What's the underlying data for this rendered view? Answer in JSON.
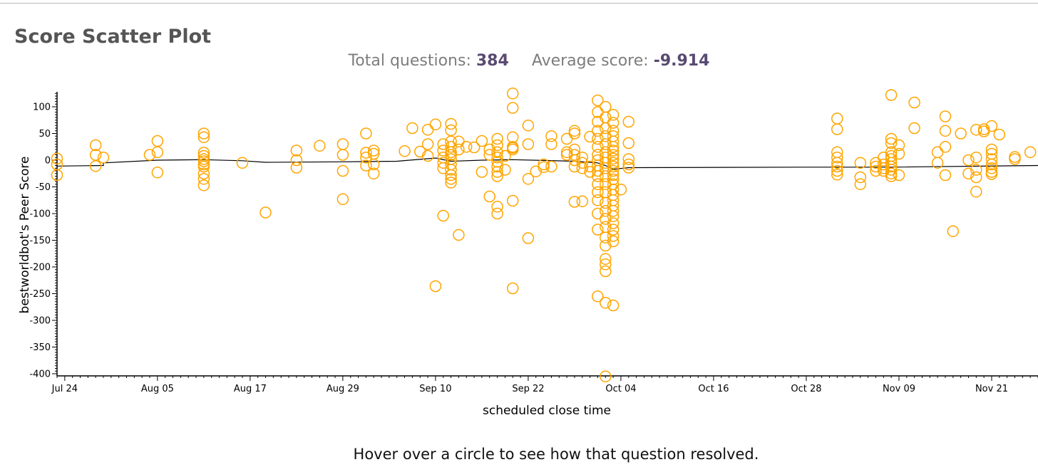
{
  "page": {
    "title": "Score Scatter Plot",
    "stats": {
      "total_label": "Total questions:",
      "total_value": "384",
      "average_label": "Average score:",
      "average_value": "-9.914"
    },
    "hover_hint": "Hover over a circle to see how that question resolved."
  },
  "colors": {
    "point": "#ffa500",
    "line": "#000000",
    "stat_value": "#594a72",
    "title": "#555555"
  },
  "chart_data": {
    "type": "scatter",
    "xlabel": "scheduled close time",
    "ylabel": "bestworldbot's Peer Score",
    "xlim": [
      "2024-07-23",
      "2024-11-27"
    ],
    "ylim": [
      -400,
      125
    ],
    "x_ticks": [
      {
        "date": "2024-07-24",
        "label": "Jul 24"
      },
      {
        "date": "2024-08-05",
        "label": "Aug 05"
      },
      {
        "date": "2024-08-17",
        "label": "Aug 17"
      },
      {
        "date": "2024-08-29",
        "label": "Aug 29"
      },
      {
        "date": "2024-09-10",
        "label": "Sep 10"
      },
      {
        "date": "2024-09-22",
        "label": "Sep 22"
      },
      {
        "date": "2024-10-04",
        "label": "Oct 04"
      },
      {
        "date": "2024-10-16",
        "label": "Oct 16"
      },
      {
        "date": "2024-10-28",
        "label": "Oct 28"
      },
      {
        "date": "2024-11-09",
        "label": "Nov 09"
      },
      {
        "date": "2024-11-21",
        "label": "Nov 21"
      }
    ],
    "y_ticks": [
      100,
      50,
      0,
      -50,
      -100,
      -150,
      -200,
      -250,
      -300,
      -350,
      -400
    ],
    "grid": false,
    "legend": "none",
    "marker": "hollow-circle",
    "points": [
      [
        "2024-07-23",
        3
      ],
      [
        "2024-07-23",
        -8
      ],
      [
        "2024-07-23",
        -28
      ],
      [
        "2024-07-28",
        28
      ],
      [
        "2024-07-28",
        10
      ],
      [
        "2024-07-28",
        -11
      ],
      [
        "2024-07-29",
        5
      ],
      [
        "2024-08-04",
        10
      ],
      [
        "2024-08-05",
        36
      ],
      [
        "2024-08-05",
        15
      ],
      [
        "2024-08-05",
        -23
      ],
      [
        "2024-08-11",
        50
      ],
      [
        "2024-08-11",
        43
      ],
      [
        "2024-08-11",
        14
      ],
      [
        "2024-08-11",
        8
      ],
      [
        "2024-08-11",
        2
      ],
      [
        "2024-08-11",
        -2
      ],
      [
        "2024-08-11",
        -8
      ],
      [
        "2024-08-11",
        -12
      ],
      [
        "2024-08-11",
        -25
      ],
      [
        "2024-08-11",
        -35
      ],
      [
        "2024-08-11",
        -47
      ],
      [
        "2024-08-16",
        -5
      ],
      [
        "2024-08-19",
        -98
      ],
      [
        "2024-08-23",
        18
      ],
      [
        "2024-08-23",
        0
      ],
      [
        "2024-08-23",
        -14
      ],
      [
        "2024-08-26",
        27
      ],
      [
        "2024-08-29",
        30
      ],
      [
        "2024-08-29",
        10
      ],
      [
        "2024-08-29",
        -20
      ],
      [
        "2024-08-29",
        -73
      ],
      [
        "2024-09-01",
        50
      ],
      [
        "2024-09-01",
        14
      ],
      [
        "2024-09-01",
        5
      ],
      [
        "2024-09-01",
        -10
      ],
      [
        "2024-09-02",
        18
      ],
      [
        "2024-09-02",
        12
      ],
      [
        "2024-09-02",
        -8
      ],
      [
        "2024-09-02",
        -25
      ],
      [
        "2024-09-06",
        17
      ],
      [
        "2024-09-07",
        60
      ],
      [
        "2024-09-08",
        16
      ],
      [
        "2024-09-09",
        57
      ],
      [
        "2024-09-09",
        30
      ],
      [
        "2024-09-09",
        8
      ],
      [
        "2024-09-10",
        67
      ],
      [
        "2024-09-10",
        -236
      ],
      [
        "2024-09-11",
        30
      ],
      [
        "2024-09-11",
        18
      ],
      [
        "2024-09-11",
        5
      ],
      [
        "2024-09-11",
        -5
      ],
      [
        "2024-09-11",
        -15
      ],
      [
        "2024-09-11",
        -104
      ],
      [
        "2024-09-12",
        68
      ],
      [
        "2024-09-12",
        56
      ],
      [
        "2024-09-12",
        35
      ],
      [
        "2024-09-12",
        25
      ],
      [
        "2024-09-12",
        15
      ],
      [
        "2024-09-12",
        10
      ],
      [
        "2024-09-12",
        2
      ],
      [
        "2024-09-12",
        -8
      ],
      [
        "2024-09-12",
        -18
      ],
      [
        "2024-09-12",
        -28
      ],
      [
        "2024-09-12",
        -35
      ],
      [
        "2024-09-12",
        -42
      ],
      [
        "2024-09-13",
        35
      ],
      [
        "2024-09-13",
        20
      ],
      [
        "2024-09-13",
        -140
      ],
      [
        "2024-09-14",
        25
      ],
      [
        "2024-09-15",
        24
      ],
      [
        "2024-09-16",
        36
      ],
      [
        "2024-09-16",
        -22
      ],
      [
        "2024-09-17",
        20
      ],
      [
        "2024-09-17",
        10
      ],
      [
        "2024-09-17",
        -68
      ],
      [
        "2024-09-18",
        40
      ],
      [
        "2024-09-18",
        28
      ],
      [
        "2024-09-18",
        15
      ],
      [
        "2024-09-18",
        5
      ],
      [
        "2024-09-18",
        -3
      ],
      [
        "2024-09-18",
        -12
      ],
      [
        "2024-09-18",
        -22
      ],
      [
        "2024-09-18",
        -30
      ],
      [
        "2024-09-18",
        -87
      ],
      [
        "2024-09-18",
        -100
      ],
      [
        "2024-09-19",
        -18
      ],
      [
        "2024-09-19",
        8
      ],
      [
        "2024-09-20",
        125
      ],
      [
        "2024-09-20",
        98
      ],
      [
        "2024-09-20",
        43
      ],
      [
        "2024-09-20",
        25
      ],
      [
        "2024-09-20",
        23
      ],
      [
        "2024-09-20",
        20
      ],
      [
        "2024-09-20",
        -76
      ],
      [
        "2024-09-20",
        -240
      ],
      [
        "2024-09-22",
        65
      ],
      [
        "2024-09-22",
        30
      ],
      [
        "2024-09-22",
        -35
      ],
      [
        "2024-09-22",
        -146
      ],
      [
        "2024-09-23",
        -21
      ],
      [
        "2024-09-24",
        -8
      ],
      [
        "2024-09-24",
        -13
      ],
      [
        "2024-09-25",
        45
      ],
      [
        "2024-09-25",
        30
      ],
      [
        "2024-09-25",
        -12
      ],
      [
        "2024-09-27",
        40
      ],
      [
        "2024-09-27",
        15
      ],
      [
        "2024-09-27",
        10
      ],
      [
        "2024-09-28",
        55
      ],
      [
        "2024-09-28",
        50
      ],
      [
        "2024-09-28",
        20
      ],
      [
        "2024-09-28",
        10
      ],
      [
        "2024-09-28",
        0
      ],
      [
        "2024-09-28",
        -12
      ],
      [
        "2024-09-28",
        -78
      ],
      [
        "2024-09-29",
        5
      ],
      [
        "2024-09-29",
        -5
      ],
      [
        "2024-09-29",
        -15
      ],
      [
        "2024-09-29",
        -77
      ],
      [
        "2024-09-30",
        44
      ],
      [
        "2024-09-30",
        -12
      ],
      [
        "2024-09-30",
        -22
      ],
      [
        "2024-10-01",
        112
      ],
      [
        "2024-10-01",
        90
      ],
      [
        "2024-10-01",
        72
      ],
      [
        "2024-10-01",
        55
      ],
      [
        "2024-10-01",
        40
      ],
      [
        "2024-10-01",
        25
      ],
      [
        "2024-10-01",
        10
      ],
      [
        "2024-10-01",
        0
      ],
      [
        "2024-10-01",
        -10
      ],
      [
        "2024-10-01",
        -20
      ],
      [
        "2024-10-01",
        -30
      ],
      [
        "2024-10-01",
        -45
      ],
      [
        "2024-10-01",
        -60
      ],
      [
        "2024-10-01",
        -75
      ],
      [
        "2024-10-01",
        -100
      ],
      [
        "2024-10-01",
        -130
      ],
      [
        "2024-10-01",
        -255
      ],
      [
        "2024-10-02",
        100
      ],
      [
        "2024-10-02",
        80
      ],
      [
        "2024-10-02",
        60
      ],
      [
        "2024-10-02",
        45
      ],
      [
        "2024-10-02",
        30
      ],
      [
        "2024-10-02",
        15
      ],
      [
        "2024-10-02",
        5
      ],
      [
        "2024-10-02",
        -5
      ],
      [
        "2024-10-02",
        -15
      ],
      [
        "2024-10-02",
        -30
      ],
      [
        "2024-10-02",
        -45
      ],
      [
        "2024-10-02",
        -60
      ],
      [
        "2024-10-02",
        -80
      ],
      [
        "2024-10-02",
        -95
      ],
      [
        "2024-10-02",
        -110
      ],
      [
        "2024-10-02",
        -125
      ],
      [
        "2024-10-02",
        -145
      ],
      [
        "2024-10-02",
        -160
      ],
      [
        "2024-10-02",
        -185
      ],
      [
        "2024-10-02",
        -195
      ],
      [
        "2024-10-02",
        -208
      ],
      [
        "2024-10-02",
        -267
      ],
      [
        "2024-10-02",
        -405
      ],
      [
        "2024-10-03",
        85
      ],
      [
        "2024-10-03",
        70
      ],
      [
        "2024-10-03",
        55
      ],
      [
        "2024-10-03",
        45
      ],
      [
        "2024-10-03",
        35
      ],
      [
        "2024-10-03",
        25
      ],
      [
        "2024-10-03",
        18
      ],
      [
        "2024-10-03",
        10
      ],
      [
        "2024-10-03",
        3
      ],
      [
        "2024-10-03",
        -5
      ],
      [
        "2024-10-03",
        -12
      ],
      [
        "2024-10-03",
        -20
      ],
      [
        "2024-10-03",
        -28
      ],
      [
        "2024-10-03",
        -36
      ],
      [
        "2024-10-03",
        -45
      ],
      [
        "2024-10-03",
        -55
      ],
      [
        "2024-10-03",
        -65
      ],
      [
        "2024-10-03",
        -75
      ],
      [
        "2024-10-03",
        -85
      ],
      [
        "2024-10-03",
        -95
      ],
      [
        "2024-10-03",
        -105
      ],
      [
        "2024-10-03",
        -118
      ],
      [
        "2024-10-03",
        -130
      ],
      [
        "2024-10-03",
        -142
      ],
      [
        "2024-10-03",
        -152
      ],
      [
        "2024-10-03",
        -272
      ],
      [
        "2024-10-04",
        -55
      ],
      [
        "2024-10-05",
        72
      ],
      [
        "2024-10-05",
        32
      ],
      [
        "2024-10-05",
        2
      ],
      [
        "2024-10-05",
        -8
      ],
      [
        "2024-10-05",
        -14
      ],
      [
        "2024-11-01",
        78
      ],
      [
        "2024-11-01",
        58
      ],
      [
        "2024-11-01",
        15
      ],
      [
        "2024-11-01",
        5
      ],
      [
        "2024-11-01",
        -5
      ],
      [
        "2024-11-01",
        -12
      ],
      [
        "2024-11-01",
        -20
      ],
      [
        "2024-11-01",
        -27
      ],
      [
        "2024-11-04",
        -5
      ],
      [
        "2024-11-04",
        -32
      ],
      [
        "2024-11-04",
        -45
      ],
      [
        "2024-11-06",
        -5
      ],
      [
        "2024-11-06",
        -12
      ],
      [
        "2024-11-06",
        -20
      ],
      [
        "2024-11-07",
        5
      ],
      [
        "2024-11-07",
        -8
      ],
      [
        "2024-11-07",
        -15
      ],
      [
        "2024-11-07",
        -20
      ],
      [
        "2024-11-08",
        122
      ],
      [
        "2024-11-08",
        40
      ],
      [
        "2024-11-08",
        32
      ],
      [
        "2024-11-08",
        15
      ],
      [
        "2024-11-08",
        8
      ],
      [
        "2024-11-08",
        2
      ],
      [
        "2024-11-08",
        -5
      ],
      [
        "2024-11-08",
        -12
      ],
      [
        "2024-11-08",
        -18
      ],
      [
        "2024-11-08",
        -25
      ],
      [
        "2024-11-08",
        -30
      ],
      [
        "2024-11-09",
        28
      ],
      [
        "2024-11-09",
        12
      ],
      [
        "2024-11-09",
        -28
      ],
      [
        "2024-11-11",
        108
      ],
      [
        "2024-11-11",
        60
      ],
      [
        "2024-11-14",
        15
      ],
      [
        "2024-11-14",
        -5
      ],
      [
        "2024-11-15",
        82
      ],
      [
        "2024-11-15",
        55
      ],
      [
        "2024-11-15",
        25
      ],
      [
        "2024-11-15",
        -28
      ],
      [
        "2024-11-16",
        -133
      ],
      [
        "2024-11-17",
        50
      ],
      [
        "2024-11-18",
        0
      ],
      [
        "2024-11-18",
        -25
      ],
      [
        "2024-11-19",
        57
      ],
      [
        "2024-11-19",
        5
      ],
      [
        "2024-11-19",
        -18
      ],
      [
        "2024-11-19",
        -32
      ],
      [
        "2024-11-19",
        -59
      ],
      [
        "2024-11-20",
        58
      ],
      [
        "2024-11-20",
        54
      ],
      [
        "2024-11-21",
        64
      ],
      [
        "2024-11-21",
        20
      ],
      [
        "2024-11-21",
        12
      ],
      [
        "2024-11-21",
        2
      ],
      [
        "2024-11-21",
        -8
      ],
      [
        "2024-11-21",
        -15
      ],
      [
        "2024-11-21",
        -22
      ],
      [
        "2024-11-21",
        -26
      ],
      [
        "2024-11-22",
        48
      ],
      [
        "2024-11-24",
        6
      ],
      [
        "2024-11-24",
        2
      ],
      [
        "2024-11-26",
        15
      ]
    ],
    "line_series": [
      [
        "2024-07-23",
        -11
      ],
      [
        "2024-07-29",
        -10
      ],
      [
        "2024-07-29",
        -5
      ],
      [
        "2024-08-05",
        0
      ],
      [
        "2024-08-11",
        1
      ],
      [
        "2024-08-16",
        -1
      ],
      [
        "2024-08-19",
        -4
      ],
      [
        "2024-08-29",
        -3
      ],
      [
        "2024-09-05",
        -2
      ],
      [
        "2024-09-10",
        4
      ],
      [
        "2024-09-12",
        -2
      ],
      [
        "2024-09-16",
        0
      ],
      [
        "2024-09-20",
        1
      ],
      [
        "2024-09-28",
        -2
      ],
      [
        "2024-10-01",
        -5
      ],
      [
        "2024-10-02",
        -10
      ],
      [
        "2024-10-03",
        -17
      ],
      [
        "2024-10-05",
        -14
      ],
      [
        "2024-10-28",
        -13
      ],
      [
        "2024-11-08",
        -13
      ],
      [
        "2024-11-27",
        -10
      ]
    ]
  }
}
